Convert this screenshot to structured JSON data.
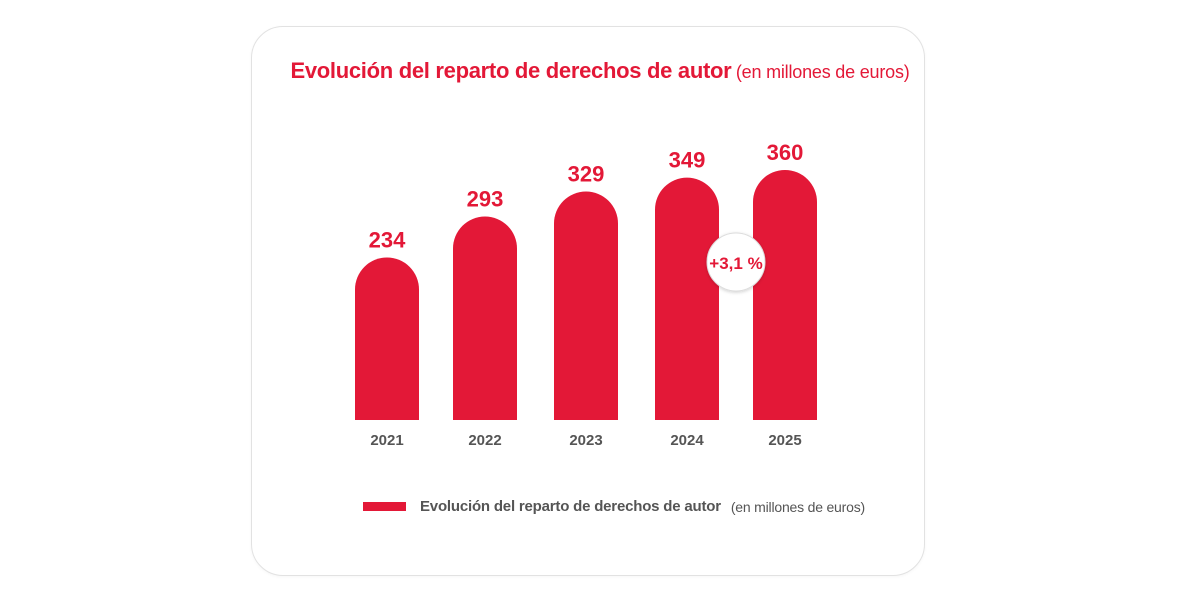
{
  "chart_data": {
    "type": "bar",
    "title": "Evolución del reparto de derechos de autor",
    "subtitle": "(en millones de euros)",
    "categories": [
      "2021",
      "2022",
      "2023",
      "2024",
      "2025"
    ],
    "series": [
      {
        "name": "Evolución del reparto de derechos de autor",
        "values": [
          234,
          293,
          329,
          349,
          360
        ]
      }
    ],
    "value_labels": [
      "234",
      "293",
      "329",
      "349",
      "360"
    ],
    "annotation": {
      "text": "+3,1 %",
      "between": [
        "2024",
        "2025"
      ]
    },
    "legend": {
      "label": "Evolución del reparto de derechos de autor",
      "unit": "(en millones de euros)",
      "position": "bottom"
    },
    "xlabel": "",
    "ylabel": "",
    "grid": false
  },
  "colors": {
    "bar": "#e31837",
    "title": "#e31837",
    "value_label": "#e31837",
    "axis_label": "#555555",
    "divider": "#e31837"
  }
}
